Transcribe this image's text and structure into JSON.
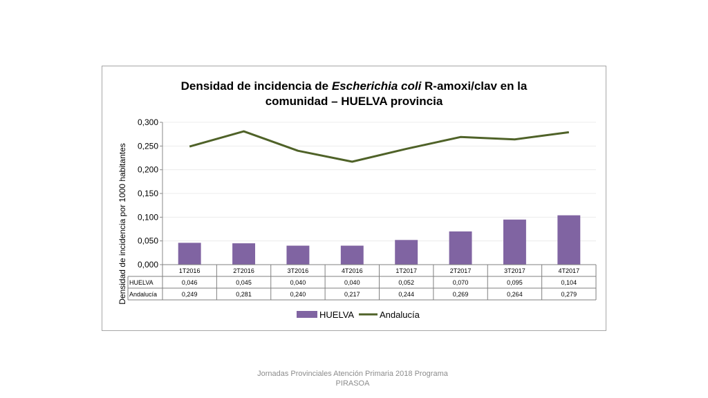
{
  "chart_data": {
    "type": "bar",
    "title_line1": "Densidad de incidencia de ",
    "title_italic": "Escherichia coli",
    "title_line1_end": " R-amoxi/clav en la",
    "title_line2": "comunidad – HUELVA provincia",
    "ylabel": "Densidad de incidencia por 1000 habitantes",
    "ylim": [
      0,
      0.3
    ],
    "yticks": [
      "0,000",
      "0,050",
      "0,100",
      "0,150",
      "0,200",
      "0,250",
      "0,300"
    ],
    "categories": [
      "1T2016",
      "2T2016",
      "3T2016",
      "4T2016",
      "1T2017",
      "2T2017",
      "3T2017",
      "4T2017"
    ],
    "series": [
      {
        "name": "HUELVA",
        "kind": "bar",
        "color": "#8064a2",
        "values": [
          0.046,
          0.045,
          0.04,
          0.04,
          0.052,
          0.07,
          0.095,
          0.104
        ],
        "labels": [
          "0,046",
          "0,045",
          "0,040",
          "0,040",
          "0,052",
          "0,070",
          "0,095",
          "0,104"
        ]
      },
      {
        "name": "Andalucía",
        "kind": "line",
        "color": "#4f6228",
        "values": [
          0.249,
          0.281,
          0.24,
          0.217,
          0.244,
          0.269,
          0.264,
          0.279
        ],
        "labels": [
          "0,249",
          "0,281",
          "0,240",
          "0,217",
          "0,244",
          "0,269",
          "0,264",
          "0,279"
        ]
      }
    ],
    "legend_position": "bottom",
    "data_table": true,
    "grid": true
  },
  "footer": {
    "line1": "Jornadas Provinciales Atención Primaria 2018  Programa",
    "line2": "PIRASOA"
  }
}
